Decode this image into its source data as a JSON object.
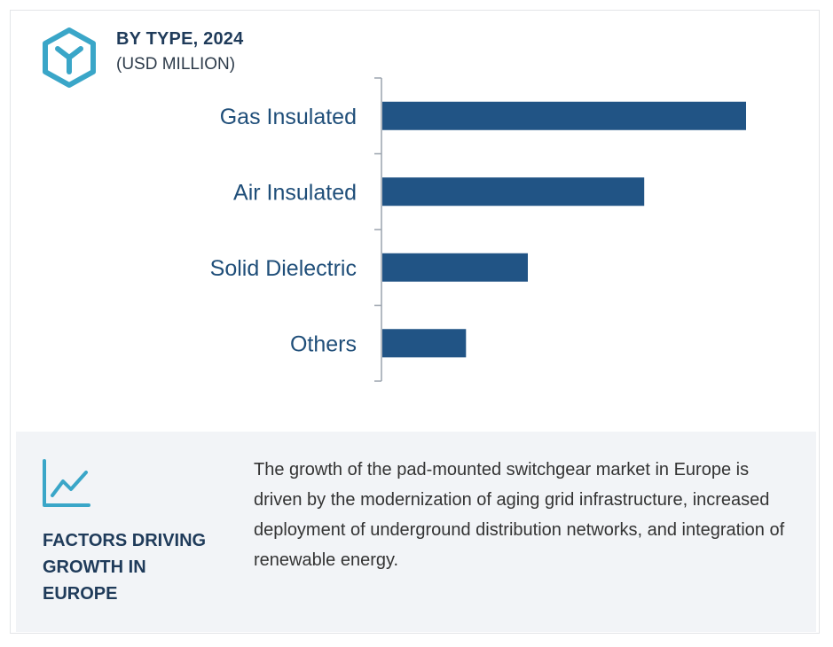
{
  "header": {
    "title": "BY TYPE, 2024",
    "subtitle": "(USD MILLION)",
    "icon": "cube-y-icon"
  },
  "chart_data": {
    "type": "bar",
    "orientation": "horizontal",
    "title": "BY TYPE, 2024",
    "subtitle": "(USD MILLION)",
    "categories": [
      "Gas Insulated",
      "Air Insulated",
      "Solid Dielectric",
      "Others"
    ],
    "values": [
      100,
      72,
      40,
      23
    ],
    "xlim": [
      0,
      100
    ],
    "grid": false,
    "legend": "none",
    "bar_color": "#215485"
  },
  "factors": {
    "icon": "trend-line-icon",
    "title": "FACTORS DRIVING GROWTH IN EUROPE",
    "text": "The growth of the pad-mounted switchgear market in Europe is driven by the modernization of aging grid infrastructure, increased deployment of underground distribution networks, and integration of renewable energy."
  },
  "colors": {
    "accent": "#3aa6c8",
    "bar": "#215485",
    "label": "#1f4e79",
    "panel": "#f2f4f7"
  }
}
